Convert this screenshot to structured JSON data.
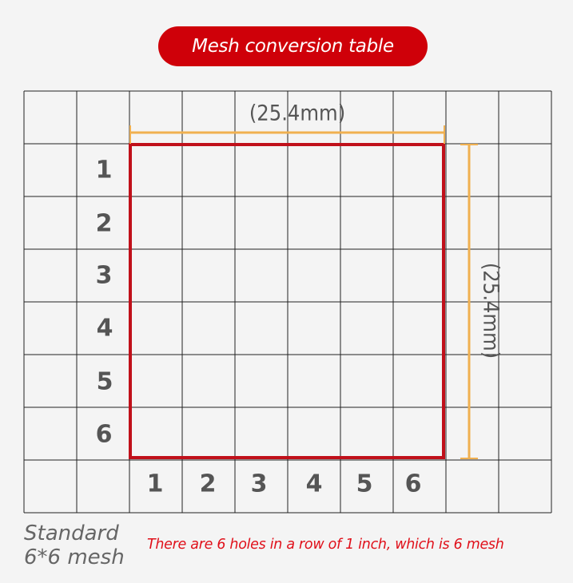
{
  "title": "Mesh conversion table",
  "dimension_label_horizontal": "(25.4mm)",
  "dimension_label_vertical": "(25.4mm)",
  "row_labels": [
    "1",
    "2",
    "3",
    "4",
    "5",
    "6"
  ],
  "column_labels": [
    "1",
    "2",
    "3",
    "4",
    "5",
    "6"
  ],
  "caption": {
    "line1": "Standard",
    "line2": "6*6 mesh"
  },
  "note": "There are 6 holes in a row of 1 inch, which is 6 mesh",
  "colors": {
    "title_bg": "#cf0009",
    "square": "#c0101a",
    "dimension": "#f0b050",
    "note": "#e0101a"
  }
}
